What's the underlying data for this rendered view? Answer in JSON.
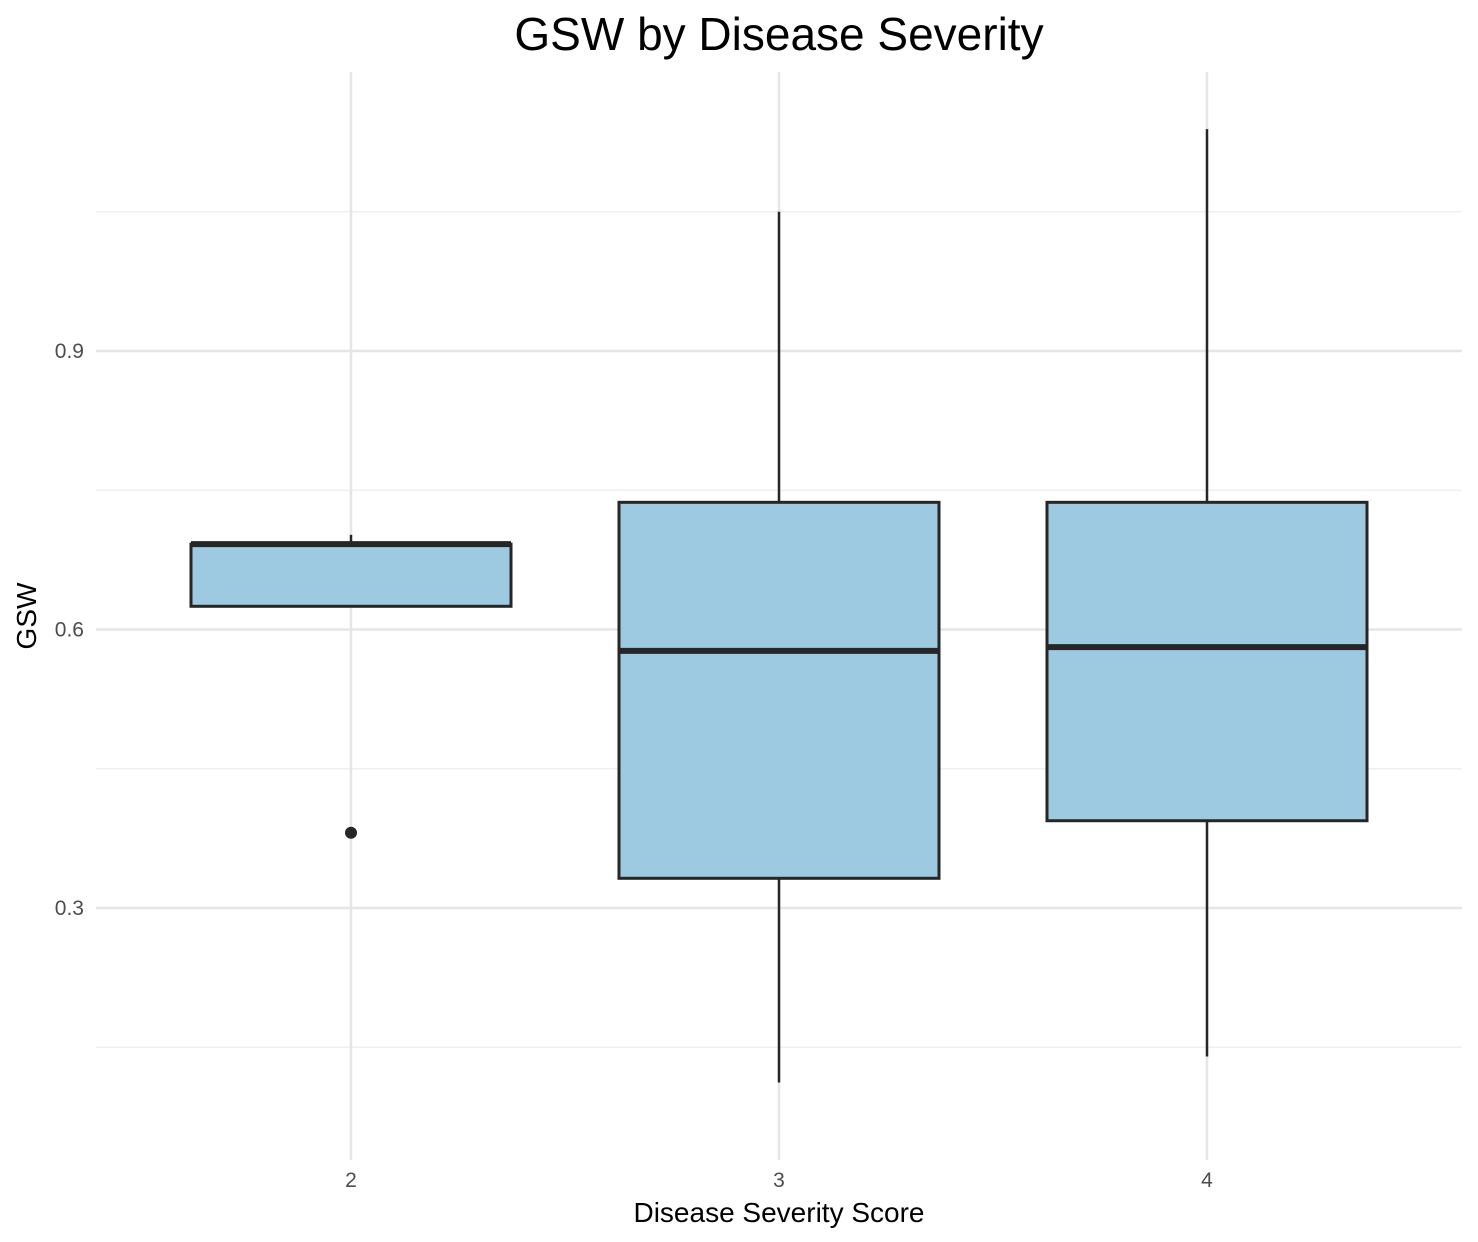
{
  "chart_data": {
    "type": "boxplot",
    "title": "GSW by Disease Severity",
    "xlabel": "Disease Severity Score",
    "ylabel": "GSW",
    "categories": [
      "2",
      "3",
      "4"
    ],
    "ylim": [
      0.05,
      1.2
    ],
    "y_ticks": [
      0.3,
      0.6,
      0.9
    ],
    "y_tick_labels": [
      "0.3",
      "0.6",
      "0.9"
    ],
    "grid": true,
    "legend": "none",
    "boxes": [
      {
        "category": "2",
        "whisker_low": 0.625,
        "q1": 0.625,
        "median": 0.692,
        "q3": 0.692,
        "whisker_high": 0.702,
        "outliers": [
          0.381
        ]
      },
      {
        "category": "3",
        "whisker_low": 0.112,
        "q1": 0.332,
        "median": 0.577,
        "q3": 0.737,
        "whisker_high": 1.05,
        "outliers": []
      },
      {
        "category": "4",
        "whisker_low": 0.14,
        "q1": 0.394,
        "median": 0.581,
        "q3": 0.737,
        "whisker_high": 1.139,
        "outliers": []
      }
    ],
    "colors": {
      "box_fill": "#9ecae1",
      "box_stroke": "#262626",
      "grid_major": "#e5e5e5",
      "grid_minor": "#efefef",
      "tick_text": "#4d4d4d"
    }
  }
}
